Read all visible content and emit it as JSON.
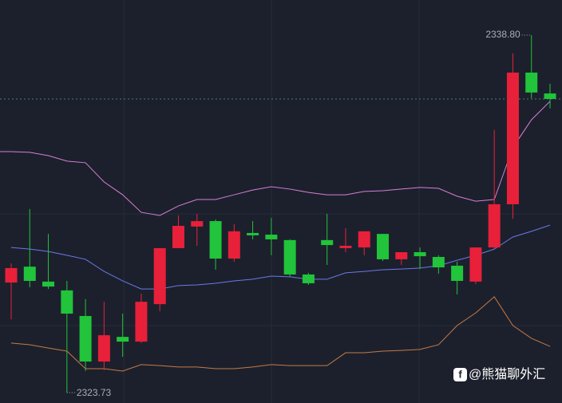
{
  "chart_data": {
    "type": "candlestick",
    "up_color": "#e8203a",
    "down_color": "#21c43a",
    "open": [
      2328.37,
      2329.04,
      2328.41,
      2328.04,
      2326.96,
      2325.04,
      2326.08,
      2325.88,
      2327.46,
      2329.82,
      2330.73,
      2330.96,
      2329.38,
      2330.46,
      2330.39,
      2330.16,
      2328.71,
      2330.16,
      2329.82,
      2329.85,
      2330.42,
      2329.35,
      2329.65,
      2329.45,
      2329.08,
      2328.41,
      2329.85,
      2331.67,
      2337.22,
      2336.34
    ],
    "high": [
      2329.18,
      2331.47,
      2330.42,
      2328.44,
      2327.67,
      2327.56,
      2327.06,
      2327.9,
      2329.82,
      2331.2,
      2331.27,
      2331.03,
      2330.83,
      2330.96,
      2331.1,
      2330.19,
      2328.78,
      2331.27,
      2330.66,
      2330.53,
      2330.42,
      2329.65,
      2329.85,
      2329.52,
      2329.25,
      2329.85,
      2334.8,
      2338.03,
      2338.8,
      2336.75
    ],
    "low": [
      2326.82,
      2328.17,
      2328.1,
      2323.73,
      2324.64,
      2324.67,
      2325.24,
      2325.82,
      2327.16,
      2329.82,
      2329.92,
      2328.91,
      2329.25,
      2330.19,
      2329.52,
      2328.61,
      2328.27,
      2329.11,
      2329.65,
      2329.52,
      2329.28,
      2329.11,
      2328.94,
      2328.74,
      2327.87,
      2328.31,
      2329.78,
      2331.06,
      2336.14,
      2335.71
    ],
    "close": [
      2328.98,
      2328.44,
      2328.2,
      2327.06,
      2325.04,
      2326.15,
      2325.88,
      2327.56,
      2329.82,
      2330.76,
      2330.96,
      2329.38,
      2330.53,
      2330.36,
      2330.19,
      2328.71,
      2328.34,
      2329.95,
      2329.92,
      2330.53,
      2329.35,
      2329.65,
      2329.48,
      2329.01,
      2328.44,
      2329.85,
      2331.67,
      2337.22,
      2336.38,
      2336.11
    ],
    "lines": [
      {
        "color": "#d57fd8",
        "values": [
          2333.89,
          2333.86,
          2333.72,
          2333.49,
          2333.42,
          2332.61,
          2332.07,
          2331.33,
          2331.2,
          2331.6,
          2331.87,
          2331.87,
          2332.07,
          2332.27,
          2332.41,
          2332.31,
          2332.17,
          2332.07,
          2332.07,
          2332.21,
          2332.24,
          2332.31,
          2332.38,
          2332.34,
          2332.01,
          2331.8,
          2331.87,
          2334.06,
          2335.23,
          2336.01
        ]
      },
      {
        "color": "#6b78e8",
        "values": [
          2329.85,
          2329.78,
          2329.68,
          2329.52,
          2329.35,
          2328.84,
          2328.44,
          2328.1,
          2328.1,
          2328.24,
          2328.27,
          2328.34,
          2328.44,
          2328.51,
          2328.64,
          2328.61,
          2328.51,
          2328.51,
          2328.78,
          2328.84,
          2328.91,
          2328.94,
          2328.98,
          2329.08,
          2329.31,
          2329.52,
          2329.78,
          2330.29,
          2330.53,
          2330.79
        ]
      },
      {
        "color": "#c57a48",
        "values": [
          2325.82,
          2325.75,
          2325.61,
          2325.48,
          2324.74,
          2324.74,
          2324.64,
          2324.91,
          2324.87,
          2324.81,
          2324.81,
          2324.74,
          2324.74,
          2324.81,
          2324.91,
          2324.87,
          2324.87,
          2324.87,
          2325.41,
          2325.41,
          2325.48,
          2325.51,
          2325.55,
          2325.75,
          2326.56,
          2327.09,
          2327.77,
          2326.56,
          2326.02,
          2325.68
        ]
      }
    ],
    "high_label": "2338.80",
    "low_label": "2323.73",
    "watermark": "@熊猫聊外汇"
  }
}
